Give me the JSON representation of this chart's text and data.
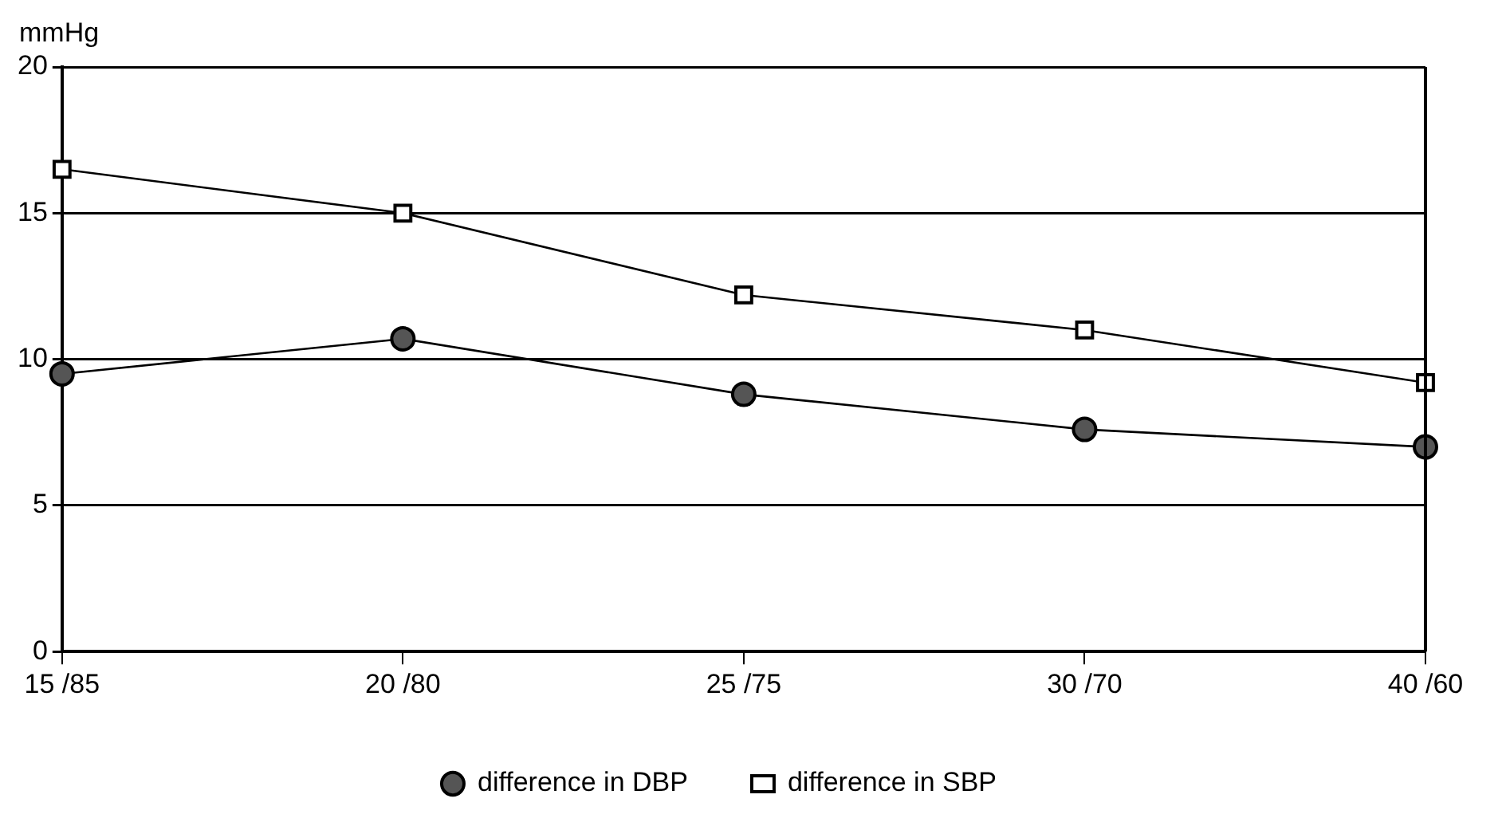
{
  "chart_data": {
    "type": "line",
    "ylabel": "mmHg",
    "categories": [
      "15 /85",
      "20 /80",
      "25 /75",
      "30 /70",
      "40 /60"
    ],
    "series": [
      {
        "name": "difference in DBP",
        "color": "#555555",
        "marker": "circle",
        "values": [
          9.5,
          10.7,
          8.8,
          7.6,
          7.0
        ]
      },
      {
        "name": "difference in SBP",
        "color": "#ffffff",
        "marker": "square",
        "values": [
          16.5,
          15.0,
          12.2,
          11.0,
          9.2
        ]
      }
    ],
    "ylim": [
      0,
      20
    ],
    "yticks": [
      0,
      5,
      10,
      15,
      20
    ],
    "grid": "y",
    "legend": "bottom"
  }
}
